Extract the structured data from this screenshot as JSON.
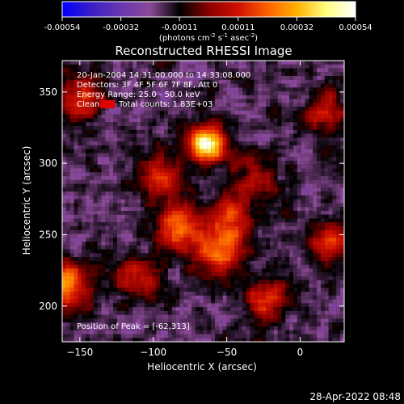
{
  "chart_data": {
    "type": "heatmap",
    "title": "Reconstructed RHESSI Image",
    "xlabel": "Heliocentric X (arcsec)",
    "ylabel": "Heliocentric Y (arcsec)",
    "xlim": [
      -162,
      30
    ],
    "ylim": [
      175,
      372
    ],
    "x_ticks": [
      -150,
      -100,
      -50,
      0
    ],
    "y_ticks": [
      200,
      250,
      300,
      350
    ],
    "colorbar": {
      "ticks": [
        "-0.00054",
        "-0.00032",
        "-0.00011",
        "0.00011",
        "0.00032",
        "0.00054"
      ],
      "range": [
        -0.00054,
        0.00054
      ],
      "unit_base": "(photons cm",
      "unit_exp1": "-2",
      "unit_mid": " s",
      "unit_exp2": "-1",
      "unit_mid2": " asec",
      "unit_exp3": "-2",
      "unit_end": ")",
      "stops": [
        "#0000ff",
        "#3a1fc4",
        "#6a36b0",
        "#8a4a96",
        "#000000",
        "#8a0000",
        "#d01000",
        "#ff6000",
        "#ffb000",
        "#ffff80",
        "#ffffff"
      ]
    },
    "annotations": {
      "time_range": "20-Jan-2004 14:31:00.000 to 14:33:08.000",
      "detectors": "Detectors: 3F 4F 5F 6F 7F 8F, Att 0",
      "energy_range": "Energy Range: 25.0 - 50.0 keV",
      "method": "Clean",
      "total_counts": "Total counts: 1.83E+03",
      "peak": "Position of Peak = [-62,313]",
      "method_color": "#e00000"
    },
    "peak": {
      "x": -62,
      "y": 313
    },
    "bright_sources": [
      {
        "x": -62,
        "y": 313,
        "intensity": 1.0
      },
      {
        "x": -160,
        "y": 215,
        "intensity": 0.7
      },
      {
        "x": -80,
        "y": 255,
        "intensity": 0.6
      },
      {
        "x": -45,
        "y": 260,
        "intensity": 0.55
      },
      {
        "x": -55,
        "y": 235,
        "intensity": 0.55
      },
      {
        "x": -95,
        "y": 290,
        "intensity": 0.45
      },
      {
        "x": -150,
        "y": 345,
        "intensity": 0.45
      },
      {
        "x": -20,
        "y": 205,
        "intensity": 0.45
      },
      {
        "x": 25,
        "y": 245,
        "intensity": 0.5
      },
      {
        "x": -110,
        "y": 220,
        "intensity": 0.4
      },
      {
        "x": 20,
        "y": 335,
        "intensity": 0.4
      },
      {
        "x": -30,
        "y": 290,
        "intensity": 0.35
      }
    ],
    "timestamp": "28-Apr-2022 08:48"
  }
}
